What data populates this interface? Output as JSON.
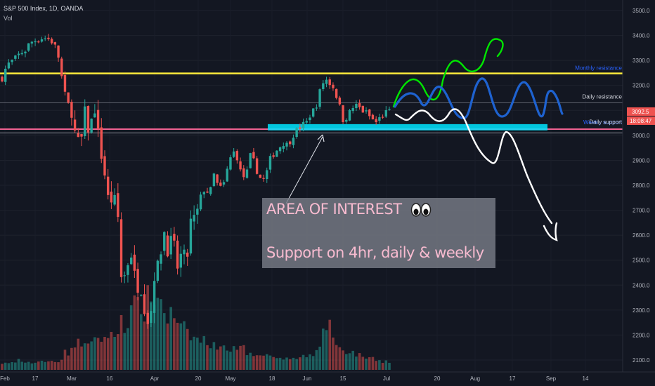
{
  "header": {
    "symbol": "S&P 500 Index, 1D, OANDA",
    "volume_label": "Vol"
  },
  "price_axis": {
    "ticks": [
      2100,
      2200,
      2300,
      2400,
      2500,
      2600,
      2700,
      2800,
      2900,
      3000,
      3100,
      3200,
      3300,
      3400,
      3500
    ],
    "current_price": "3092.5",
    "countdown": "18:08:47"
  },
  "time_axis": {
    "labels": [
      "Feb",
      "17",
      "Mar",
      "16",
      "Apr",
      "20",
      "May",
      "18",
      "Jun",
      "15",
      "Jul",
      "20",
      "Aug",
      "17",
      "Sep",
      "14"
    ]
  },
  "levels": {
    "monthly_resistance": "Monthly resistance",
    "daily_resistance": "Daily resistance",
    "weekly_support": "Weekly support",
    "daily_support": "Daily support"
  },
  "annotation": {
    "title": "AREA OF INTEREST",
    "body": "Support on 4hr, daily & weekly",
    "emoji": "eyes"
  },
  "colors": {
    "up": "#26a69a",
    "down": "#ef5350",
    "monthly": "#ffeb3b",
    "weekly": "#f06292",
    "zone": "#00e5ff",
    "scenario_green": "#00e600",
    "scenario_blue": "#1e62d0",
    "scenario_white": "#ffffff"
  },
  "chart_data": {
    "type": "candlestick",
    "title": "S&P 500 Index, 1D, OANDA",
    "ylim": [
      2050,
      3550
    ],
    "levels": {
      "monthly_resistance": 3248,
      "daily_resistance": 3130,
      "weekly_support": 3025,
      "daily_support": 3010,
      "zone": [
        3020,
        3045
      ]
    },
    "close_path": [
      3230,
      3280,
      3295,
      3310,
      3330,
      3340,
      3370,
      3380,
      3385,
      3392,
      3386,
      3373,
      3337,
      3225,
      3128,
      3116,
      2978,
      2954,
      3090,
      3003,
      3130,
      2972,
      2882,
      2741,
      2746,
      2711,
      2386,
      2480,
      2529,
      2398,
      2409,
      2305,
      2237,
      2447,
      2475,
      2630,
      2541,
      2584,
      2470,
      2527,
      2488,
      2663,
      2659,
      2749,
      2790,
      2761,
      2846,
      2783,
      2799,
      2874,
      2939,
      2912,
      2830,
      2842,
      2930,
      2870,
      2830,
      2820,
      2900,
      2930,
      2950,
      2970,
      2960,
      3000,
      3020,
      3040,
      3050,
      3090,
      3110,
      3180,
      3230,
      3210,
      3190,
      3130,
      3060,
      3080,
      3110,
      3120,
      3100,
      3090,
      3070,
      3050,
      3070,
      3090,
      3092.5
    ],
    "volume_path": [
      0.07,
      0.09,
      0.1,
      0.08,
      0.12,
      0.09,
      0.1,
      0.09,
      0.11,
      0.1,
      0.1,
      0.12,
      0.11,
      0.15,
      0.22,
      0.28,
      0.3,
      0.34,
      0.38,
      0.31,
      0.36,
      0.42,
      0.4,
      0.46,
      0.42,
      0.52,
      0.68,
      0.58,
      0.74,
      0.8,
      0.85,
      0.72,
      0.9,
      0.96,
      0.88,
      0.78,
      0.66,
      0.7,
      0.55,
      0.52,
      0.48,
      0.42,
      0.4,
      0.36,
      0.38,
      0.34,
      0.3,
      0.32,
      0.28,
      0.3,
      0.26,
      0.24,
      0.27,
      0.22,
      0.24,
      0.2,
      0.22,
      0.18,
      0.21,
      0.16,
      0.18,
      0.16,
      0.14,
      0.17,
      0.15,
      0.16,
      0.14,
      0.2,
      0.22,
      0.3,
      0.55,
      0.62,
      0.4,
      0.3,
      0.26,
      0.24,
      0.22,
      0.2,
      0.18,
      0.16,
      0.15,
      0.14,
      0.12,
      0.11,
      0.1
    ],
    "projections": [
      {
        "name": "green",
        "points": [
          [
            3060,
            3090
          ],
          [
            3140,
            3210
          ],
          [
            3245,
            3170
          ],
          [
            3130,
            3230
          ],
          [
            3300,
            3360
          ],
          [
            3395,
            3420
          ]
        ]
      },
      {
        "name": "blue",
        "points": [
          [
            3100,
            3160
          ],
          [
            3200,
            3130
          ],
          [
            3210,
            3110
          ],
          [
            3240,
            3100
          ],
          [
            3230,
            3100
          ],
          [
            3230,
            3090
          ]
        ]
      },
      {
        "name": "white",
        "points": [
          [
            3080,
            3060
          ],
          [
            3120,
            3070
          ],
          [
            3110,
            3040
          ],
          [
            2900,
            3000
          ],
          [
            2780,
            2650
          ],
          [
            2580,
            2620
          ]
        ]
      }
    ]
  }
}
